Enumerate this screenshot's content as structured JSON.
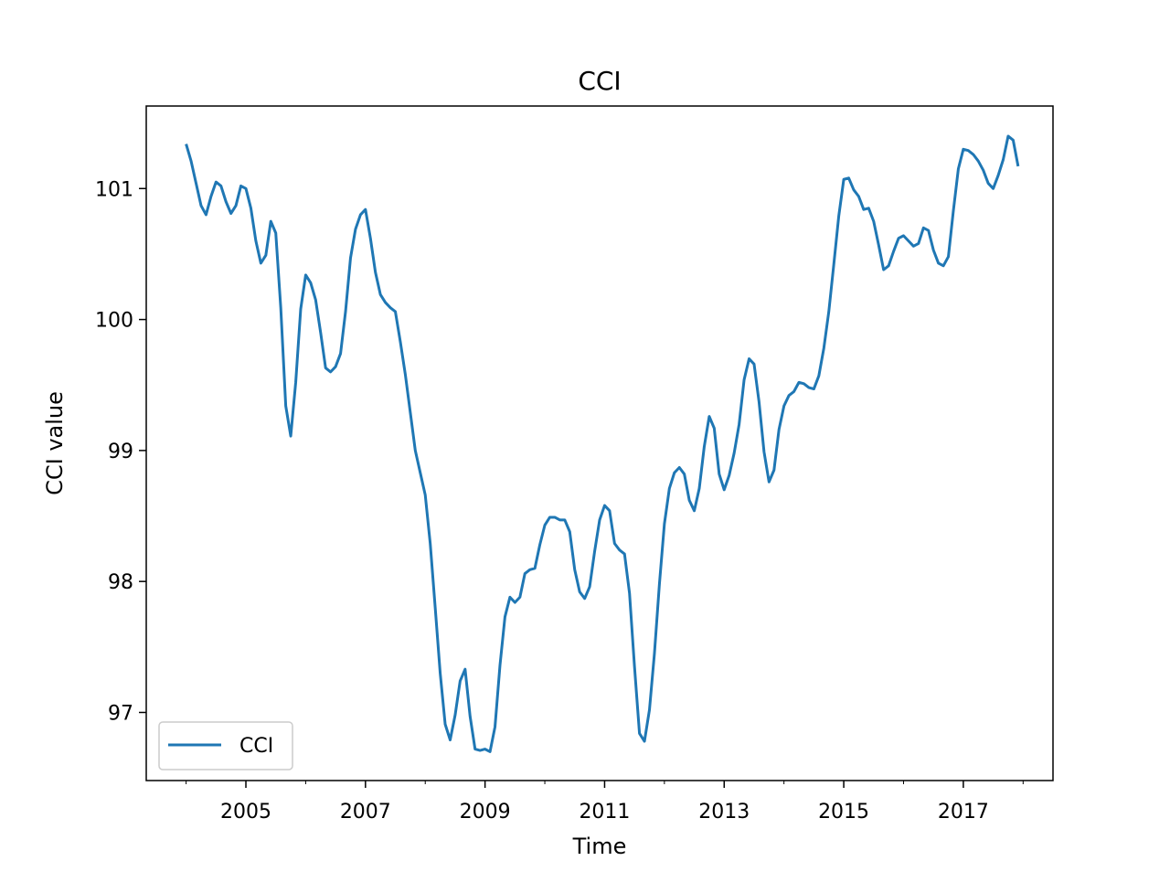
{
  "chart_data": {
    "type": "line",
    "title": "CCI",
    "xlabel": "Time",
    "ylabel": "CCI value",
    "xlim": [
      "2003-05-01",
      "2018-07-01"
    ],
    "ylim": [
      96.48,
      101.63
    ],
    "x_ticks": [
      "2005",
      "2007",
      "2009",
      "2011",
      "2013",
      "2015",
      "2017"
    ],
    "y_ticks": [
      "97",
      "98",
      "99",
      "100",
      "101"
    ],
    "legend": {
      "position": "lower-left",
      "entries": [
        "CCI"
      ]
    },
    "grid": false,
    "series": [
      {
        "name": "CCI",
        "color": "#1f77b4",
        "x": [
          "2004-01",
          "2004-02",
          "2004-03",
          "2004-04",
          "2004-05",
          "2004-06",
          "2004-07",
          "2004-08",
          "2004-09",
          "2004-10",
          "2004-11",
          "2004-12",
          "2005-01",
          "2005-02",
          "2005-03",
          "2005-04",
          "2005-05",
          "2005-06",
          "2005-07",
          "2005-08",
          "2005-09",
          "2005-10",
          "2005-11",
          "2005-12",
          "2006-01",
          "2006-02",
          "2006-03",
          "2006-04",
          "2006-05",
          "2006-06",
          "2006-07",
          "2006-08",
          "2006-09",
          "2006-10",
          "2006-11",
          "2006-12",
          "2007-01",
          "2007-02",
          "2007-03",
          "2007-04",
          "2007-05",
          "2007-06",
          "2007-07",
          "2007-08",
          "2007-09",
          "2007-10",
          "2007-11",
          "2007-12",
          "2008-01",
          "2008-02",
          "2008-03",
          "2008-04",
          "2008-05",
          "2008-06",
          "2008-07",
          "2008-08",
          "2008-09",
          "2008-10",
          "2008-11",
          "2008-12",
          "2009-01",
          "2009-02",
          "2009-03",
          "2009-04",
          "2009-05",
          "2009-06",
          "2009-07",
          "2009-08",
          "2009-09",
          "2009-10",
          "2009-11",
          "2009-12",
          "2010-01",
          "2010-02",
          "2010-03",
          "2010-04",
          "2010-05",
          "2010-06",
          "2010-07",
          "2010-08",
          "2010-09",
          "2010-10",
          "2010-11",
          "2010-12",
          "2011-01",
          "2011-02",
          "2011-03",
          "2011-04",
          "2011-05",
          "2011-06",
          "2011-07",
          "2011-08",
          "2011-09",
          "2011-10",
          "2011-11",
          "2011-12",
          "2012-01",
          "2012-02",
          "2012-03",
          "2012-04",
          "2012-05",
          "2012-06",
          "2012-07",
          "2012-08",
          "2012-09",
          "2012-10",
          "2012-11",
          "2012-12",
          "2013-01",
          "2013-02",
          "2013-03",
          "2013-04",
          "2013-05",
          "2013-06",
          "2013-07",
          "2013-08",
          "2013-09",
          "2013-10",
          "2013-11",
          "2013-12",
          "2014-01",
          "2014-02",
          "2014-03",
          "2014-04",
          "2014-05",
          "2014-06",
          "2014-07",
          "2014-08",
          "2014-09",
          "2014-10",
          "2014-11",
          "2014-12",
          "2015-01",
          "2015-02",
          "2015-03",
          "2015-04",
          "2015-05",
          "2015-06",
          "2015-07",
          "2015-08",
          "2015-09",
          "2015-10",
          "2015-11",
          "2015-12",
          "2016-01",
          "2016-02",
          "2016-03",
          "2016-04",
          "2016-05",
          "2016-06",
          "2016-07",
          "2016-08",
          "2016-09",
          "2016-10",
          "2016-11",
          "2016-12",
          "2017-01",
          "2017-02",
          "2017-03",
          "2017-04",
          "2017-05",
          "2017-06",
          "2017-07",
          "2017-08",
          "2017-09",
          "2017-10",
          "2017-11",
          "2017-12"
        ],
        "values": [
          101.34,
          101.21,
          101.04,
          100.87,
          100.8,
          100.94,
          101.05,
          101.02,
          100.9,
          100.81,
          100.87,
          101.02,
          101.0,
          100.85,
          100.6,
          100.43,
          100.49,
          100.75,
          100.66,
          100.09,
          99.34,
          99.11,
          99.52,
          100.08,
          100.34,
          100.28,
          100.15,
          99.9,
          99.63,
          99.6,
          99.64,
          99.74,
          100.06,
          100.47,
          100.69,
          100.8,
          100.84,
          100.62,
          100.36,
          100.19,
          100.13,
          100.09,
          100.06,
          99.83,
          99.58,
          99.29,
          99.0,
          98.83,
          98.66,
          98.29,
          97.8,
          97.3,
          96.91,
          96.79,
          96.98,
          97.24,
          97.33,
          96.97,
          96.72,
          96.71,
          96.72,
          96.7,
          96.89,
          97.36,
          97.73,
          97.88,
          97.84,
          97.88,
          98.06,
          98.09,
          98.1,
          98.28,
          98.43,
          98.49,
          98.49,
          98.47,
          98.47,
          98.38,
          98.09,
          97.92,
          97.87,
          97.96,
          98.23,
          98.47,
          98.58,
          98.54,
          98.29,
          98.24,
          98.21,
          97.91,
          97.35,
          96.84,
          96.78,
          97.02,
          97.45,
          97.98,
          98.44,
          98.71,
          98.83,
          98.87,
          98.82,
          98.62,
          98.54,
          98.71,
          99.03,
          99.26,
          99.17,
          98.82,
          98.7,
          98.81,
          98.98,
          99.2,
          99.54,
          99.7,
          99.66,
          99.37,
          98.99,
          98.76,
          98.85,
          99.16,
          99.34,
          99.42,
          99.45,
          99.52,
          99.51,
          99.48,
          99.47,
          99.57,
          99.78,
          100.06,
          100.42,
          100.79,
          101.07,
          101.08,
          100.99,
          100.94,
          100.84,
          100.85,
          100.75,
          100.57,
          100.38,
          100.41,
          100.52,
          100.62,
          100.64,
          100.6,
          100.56,
          100.58,
          100.7,
          100.68,
          100.53,
          100.43,
          100.41,
          100.48,
          100.83,
          101.15,
          101.3,
          101.29,
          101.26,
          101.21,
          101.14,
          101.04,
          101.0,
          101.1,
          101.22,
          101.4,
          101.37,
          101.17
        ]
      }
    ]
  }
}
